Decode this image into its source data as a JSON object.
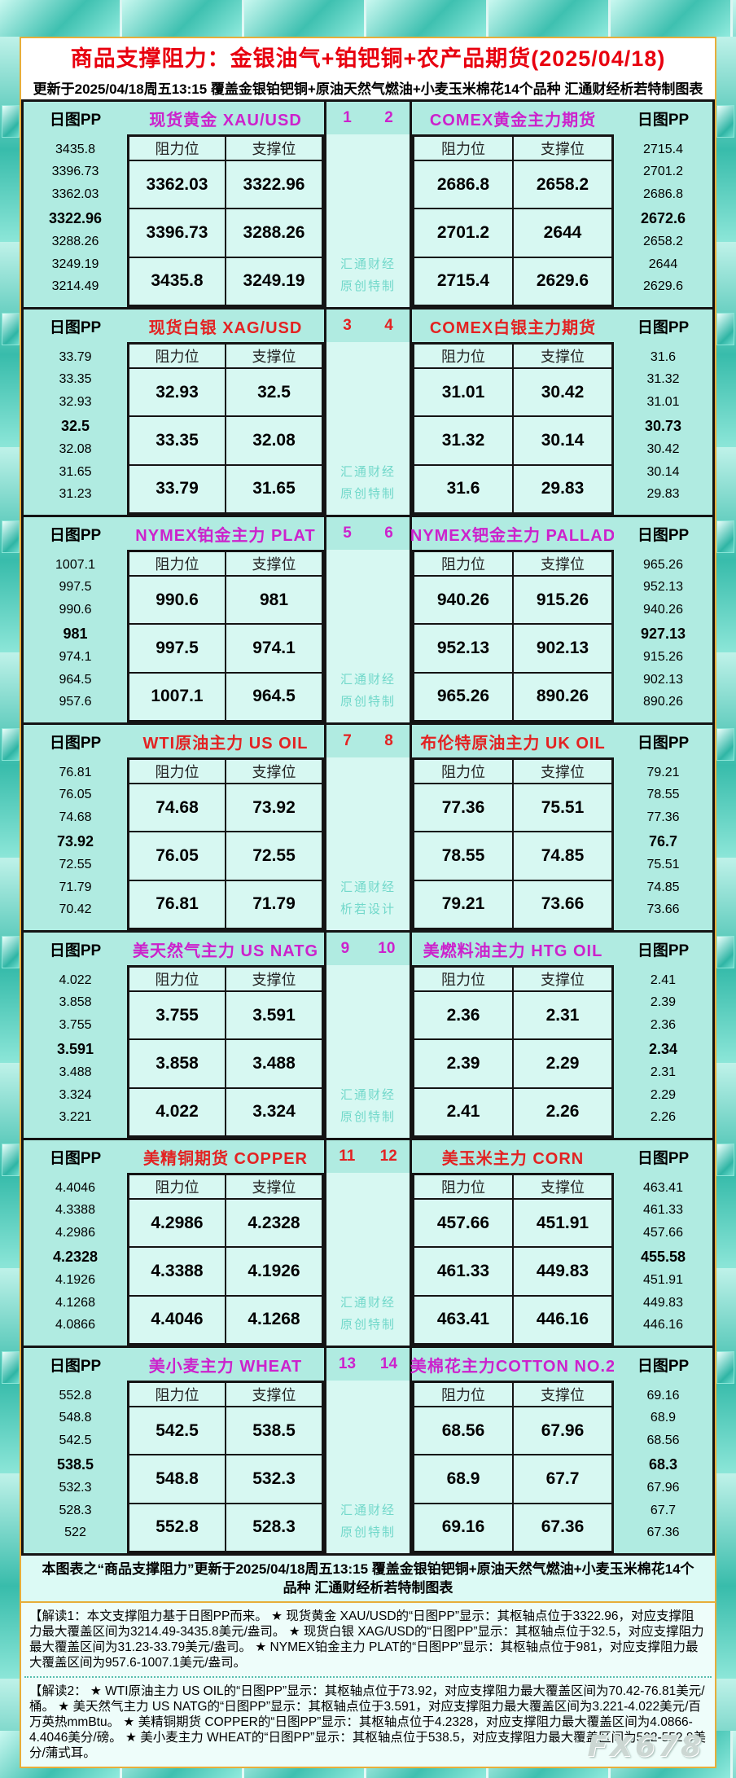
{
  "header": {
    "title": "商品支撑阻力：金银油气+铂钯铜+农产品期货(2025/04/18)",
    "subtitle": "更新于2025/04/18周五13:15  覆盖金银铂钯铜+原油天然气燃油+小麦玉米棉花14个品种  汇通财经析若特制图表"
  },
  "labels": {
    "pp_label": "日图PP",
    "resistance": "阻力位",
    "support": "支撑位"
  },
  "colors": {
    "accent_magenta": "#cc22cc",
    "accent_red": "#e32222",
    "title_red": "#e8000f",
    "table_bg": "#d7f8f2",
    "band_bg": "#b0ebe1",
    "tile_teal": "#3cc4b4",
    "frame_gold": "#e7ae3a",
    "watermark_teal": "#72d8ca"
  },
  "chart_data": {
    "type": "table",
    "title": "商品支撑阻力：金银油气+铂钯铜+农产品期货(2025/04/18)",
    "updated": "2025/04/18周五13:15",
    "columns": [
      "阻力位",
      "支撑位"
    ],
    "sections": [
      {
        "accent": "magenta",
        "watermark": [
          "汇通财经",
          "原创特制"
        ],
        "left": {
          "num": "1",
          "title": "现货黄金 XAU/USD",
          "pivot": "3322.96",
          "pp": [
            "3435.8",
            "3396.73",
            "3362.03",
            "3322.96",
            "3288.26",
            "3249.19",
            "3214.49"
          ],
          "rows": [
            [
              "3362.03",
              "3322.96"
            ],
            [
              "3396.73",
              "3288.26"
            ],
            [
              "3435.8",
              "3249.19"
            ]
          ]
        },
        "right": {
          "num": "2",
          "title": "COMEX黄金主力期货",
          "pivot": "2672.6",
          "pp": [
            "2715.4",
            "2701.2",
            "2686.8",
            "2672.6",
            "2658.2",
            "2644",
            "2629.6"
          ],
          "rows": [
            [
              "2686.8",
              "2658.2"
            ],
            [
              "2701.2",
              "2644"
            ],
            [
              "2715.4",
              "2629.6"
            ]
          ]
        }
      },
      {
        "accent": "red",
        "watermark": [
          "汇通财经",
          "原创特制"
        ],
        "left": {
          "num": "3",
          "title": "现货白银 XAG/USD",
          "pivot": "32.5",
          "pp": [
            "33.79",
            "33.35",
            "32.93",
            "32.5",
            "32.08",
            "31.65",
            "31.23"
          ],
          "rows": [
            [
              "32.93",
              "32.5"
            ],
            [
              "33.35",
              "32.08"
            ],
            [
              "33.79",
              "31.65"
            ]
          ]
        },
        "right": {
          "num": "4",
          "title": "COMEX白银主力期货",
          "pivot": "30.73",
          "pp": [
            "31.6",
            "31.32",
            "31.01",
            "30.73",
            "30.42",
            "30.14",
            "29.83"
          ],
          "rows": [
            [
              "31.01",
              "30.42"
            ],
            [
              "31.32",
              "30.14"
            ],
            [
              "31.6",
              "29.83"
            ]
          ]
        }
      },
      {
        "accent": "magenta",
        "watermark": [
          "汇通财经",
          "原创特制"
        ],
        "left": {
          "num": "5",
          "title": "NYMEX铂金主力 PLAT",
          "pivot": "981",
          "pp": [
            "1007.1",
            "997.5",
            "990.6",
            "981",
            "974.1",
            "964.5",
            "957.6"
          ],
          "rows": [
            [
              "990.6",
              "981"
            ],
            [
              "997.5",
              "974.1"
            ],
            [
              "1007.1",
              "964.5"
            ]
          ]
        },
        "right": {
          "num": "6",
          "title": "NYMEX钯金主力 PALLAD",
          "pivot": "927.13",
          "pp": [
            "965.26",
            "952.13",
            "940.26",
            "927.13",
            "915.26",
            "902.13",
            "890.26"
          ],
          "rows": [
            [
              "940.26",
              "915.26"
            ],
            [
              "952.13",
              "902.13"
            ],
            [
              "965.26",
              "890.26"
            ]
          ]
        }
      },
      {
        "accent": "red",
        "watermark": [
          "汇通财经",
          "析若设计"
        ],
        "left": {
          "num": "7",
          "title": "WTI原油主力 US OIL",
          "pivot": "73.92",
          "pp": [
            "76.81",
            "76.05",
            "74.68",
            "73.92",
            "72.55",
            "71.79",
            "70.42"
          ],
          "rows": [
            [
              "74.68",
              "73.92"
            ],
            [
              "76.05",
              "72.55"
            ],
            [
              "76.81",
              "71.79"
            ]
          ]
        },
        "right": {
          "num": "8",
          "title": "布伦特原油主力 UK OIL",
          "pivot": "76.7",
          "pp": [
            "79.21",
            "78.55",
            "77.36",
            "76.7",
            "75.51",
            "74.85",
            "73.66"
          ],
          "rows": [
            [
              "77.36",
              "75.51"
            ],
            [
              "78.55",
              "74.85"
            ],
            [
              "79.21",
              "73.66"
            ]
          ]
        }
      },
      {
        "accent": "magenta",
        "watermark": [
          "汇通财经",
          "原创特制"
        ],
        "left": {
          "num": "9",
          "title": "美天然气主力 US NATG",
          "pivot": "3.591",
          "pp": [
            "4.022",
            "3.858",
            "3.755",
            "3.591",
            "3.488",
            "3.324",
            "3.221"
          ],
          "rows": [
            [
              "3.755",
              "3.591"
            ],
            [
              "3.858",
              "3.488"
            ],
            [
              "4.022",
              "3.324"
            ]
          ]
        },
        "right": {
          "num": "10",
          "title": "美燃料油主力 HTG OIL",
          "pivot": "2.34",
          "pp": [
            "2.41",
            "2.39",
            "2.36",
            "2.34",
            "2.31",
            "2.29",
            "2.26"
          ],
          "rows": [
            [
              "2.36",
              "2.31"
            ],
            [
              "2.39",
              "2.29"
            ],
            [
              "2.41",
              "2.26"
            ]
          ]
        }
      },
      {
        "accent": "red",
        "watermark": [
          "汇通财经",
          "原创特制"
        ],
        "left": {
          "num": "11",
          "title": "美精铜期货 COPPER",
          "pivot": "4.2328",
          "pp": [
            "4.4046",
            "4.3388",
            "4.2986",
            "4.2328",
            "4.1926",
            "4.1268",
            "4.0866"
          ],
          "rows": [
            [
              "4.2986",
              "4.2328"
            ],
            [
              "4.3388",
              "4.1926"
            ],
            [
              "4.4046",
              "4.1268"
            ]
          ]
        },
        "right": {
          "num": "12",
          "title": "美玉米主力 CORN",
          "pivot": "455.58",
          "pp": [
            "463.41",
            "461.33",
            "457.66",
            "455.58",
            "451.91",
            "449.83",
            "446.16"
          ],
          "rows": [
            [
              "457.66",
              "451.91"
            ],
            [
              "461.33",
              "449.83"
            ],
            [
              "463.41",
              "446.16"
            ]
          ]
        }
      },
      {
        "accent": "magenta",
        "watermark": [
          "汇通财经",
          "原创特制"
        ],
        "left": {
          "num": "13",
          "title": "美小麦主力 WHEAT",
          "pivot": "538.5",
          "pp": [
            "552.8",
            "548.8",
            "542.5",
            "538.5",
            "532.3",
            "528.3",
            "522"
          ],
          "rows": [
            [
              "542.5",
              "538.5"
            ],
            [
              "548.8",
              "532.3"
            ],
            [
              "552.8",
              "528.3"
            ]
          ]
        },
        "right": {
          "num": "14",
          "title": "美棉花主力COTTON NO.2",
          "pivot": "68.3",
          "pp": [
            "69.16",
            "68.9",
            "68.56",
            "68.3",
            "67.96",
            "67.7",
            "67.36"
          ],
          "rows": [
            [
              "68.56",
              "67.96"
            ],
            [
              "68.9",
              "67.7"
            ],
            [
              "69.16",
              "67.36"
            ]
          ]
        }
      }
    ]
  },
  "footer": {
    "summary": "本图表之“商品支撑阻力”更新于2025/04/18周五13:15 覆盖金银铂钯铜+原油天然气燃油+小麦玉米棉花14个品种 汇通财经析若特制图表",
    "note1": "【解读1：本文支撑阻力基于日图PP而来。 ★ 现货黄金 XAU/USD的“日图PP”显示：其枢轴点位于3322.96，对应支撑阻力最大覆盖区间为3214.49-3435.8美元/盎司。 ★ 现货白银 XAG/USD的“日图PP”显示：其枢轴点位于32.5，对应支撑阻力最大覆盖区间为31.23-33.79美元/盎司。 ★ NYMEX铂金主力 PLAT的“日图PP”显示：其枢轴点位于981，对应支撑阻力最大覆盖区间为957.6-1007.1美元/盎司。",
    "note2": "【解读2： ★ WTI原油主力 US OIL的“日图PP”显示：其枢轴点位于73.92，对应支撑阻力最大覆盖区间为70.42-76.81美元/桶。 ★ 美天然气主力 US NATG的“日图PP”显示：其枢轴点位于3.591，对应支撑阻力最大覆盖区间为3.221-4.022美元/百万英热mmBtu。 ★ 美精铜期货 COPPER的“日图PP”显示：其枢轴点位于4.2328，对应支撑阻力最大覆盖区间为4.0866-4.4046美分/磅。 ★ 美小麦主力 WHEAT的“日图PP”显示：其枢轴点位于538.5，对应支撑阻力最大覆盖区间为522-552.8美分/蒲式耳。",
    "brand": "FX678"
  }
}
